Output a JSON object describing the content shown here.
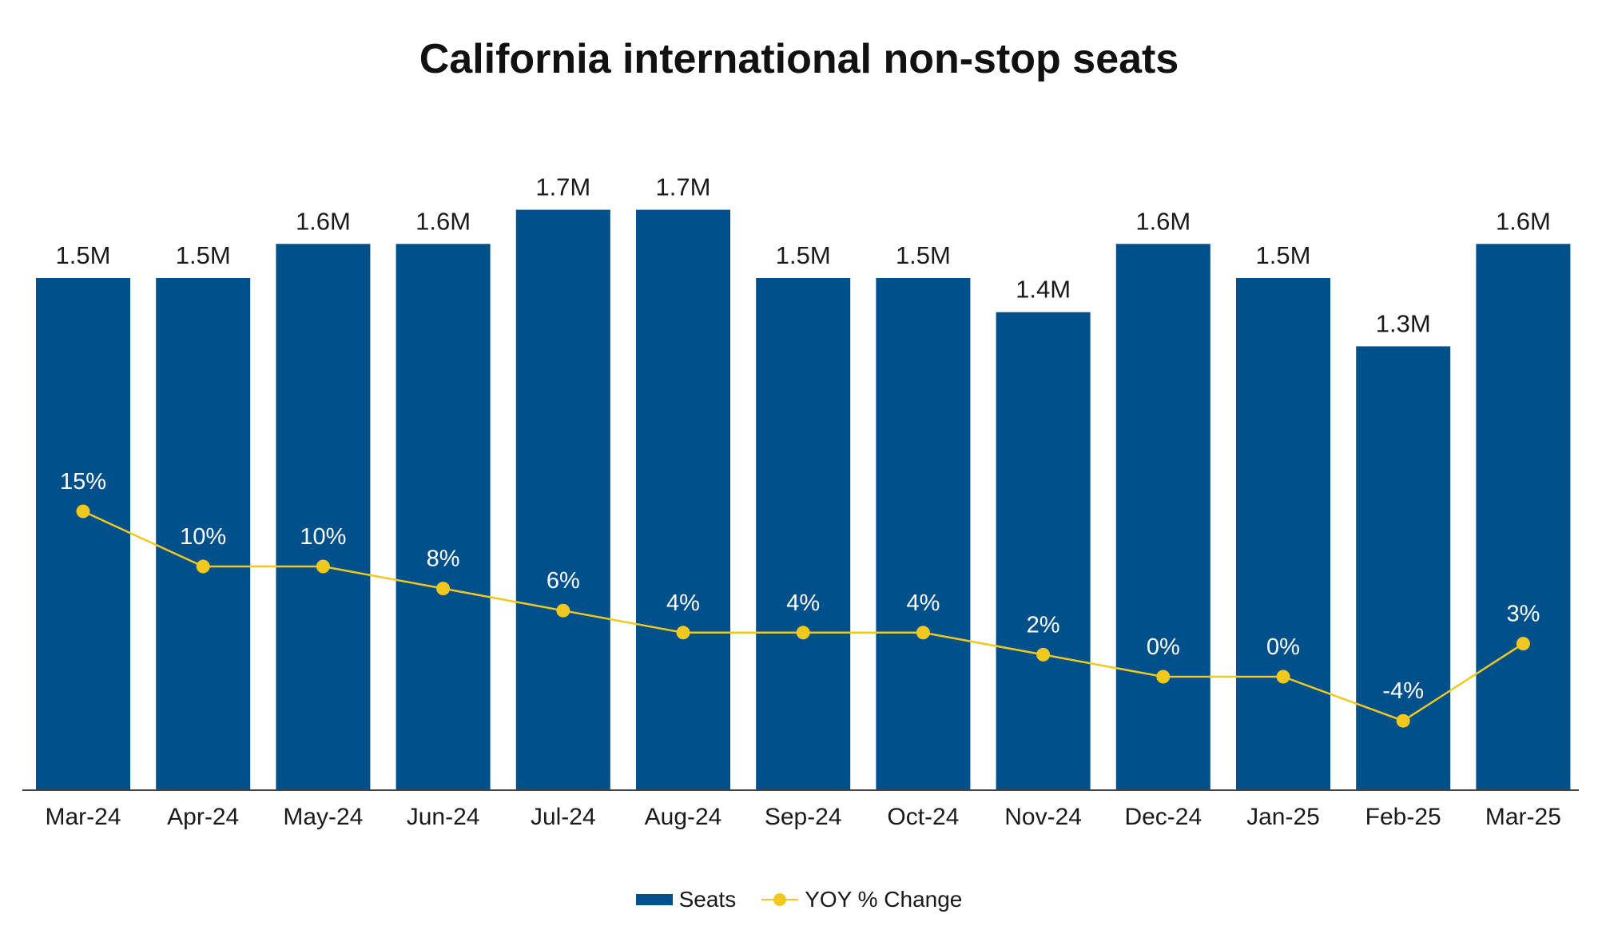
{
  "chart_data": {
    "type": "bar",
    "title": "California international non-stop seats",
    "categories": [
      "Mar-24",
      "Apr-24",
      "May-24",
      "Jun-24",
      "Jul-24",
      "Aug-24",
      "Sep-24",
      "Oct-24",
      "Nov-24",
      "Dec-24",
      "Jan-25",
      "Feb-25",
      "Mar-25"
    ],
    "series": [
      {
        "name": "Seats",
        "type": "bar",
        "color": "#00508C",
        "values": [
          1.5,
          1.5,
          1.6,
          1.6,
          1.7,
          1.7,
          1.5,
          1.5,
          1.4,
          1.6,
          1.5,
          1.3,
          1.6
        ],
        "unit": "M",
        "labels": [
          "1.5M",
          "1.5M",
          "1.6M",
          "1.6M",
          "1.7M",
          "1.7M",
          "1.5M",
          "1.5M",
          "1.4M",
          "1.6M",
          "1.5M",
          "1.3M",
          "1.6M"
        ]
      },
      {
        "name": "YOY % Change",
        "type": "line",
        "color": "#F0C81E",
        "values": [
          15,
          10,
          10,
          8,
          6,
          4,
          4,
          4,
          2,
          0,
          0,
          -4,
          3
        ],
        "unit": "%",
        "labels": [
          "15%",
          "10%",
          "10%",
          "8%",
          "6%",
          "4%",
          "4%",
          "4%",
          "2%",
          "0%",
          "0%",
          "-4%",
          "3%"
        ]
      }
    ],
    "xlabel": "",
    "ylabel": "",
    "grid": false,
    "legend": "bottom-center",
    "axes_visible": false
  }
}
